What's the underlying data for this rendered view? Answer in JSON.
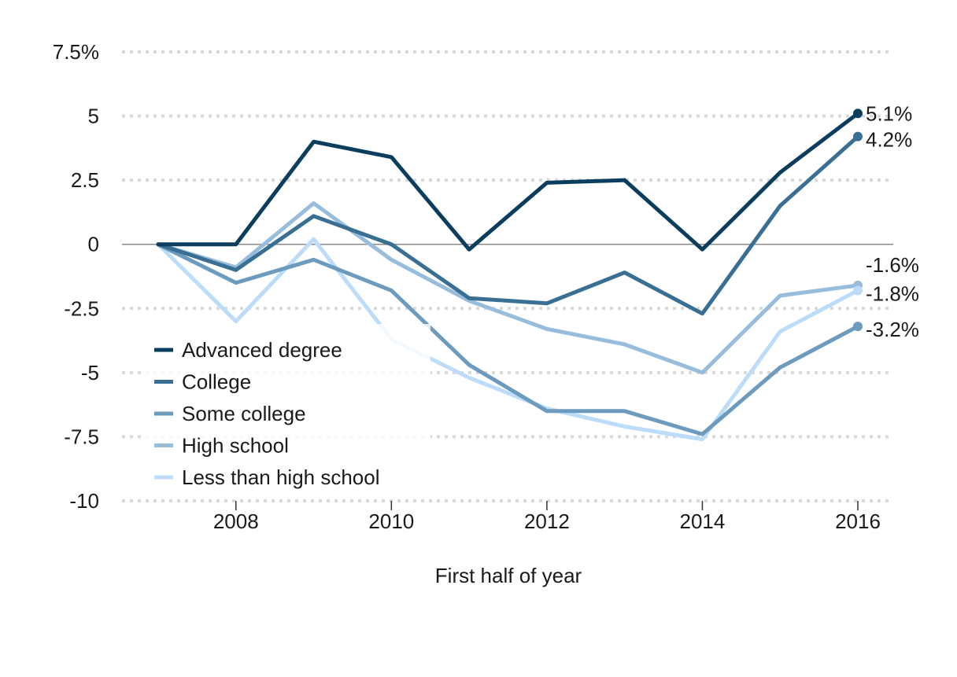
{
  "chart_data": {
    "type": "line",
    "xlabel": "First half of year",
    "ylabel": "",
    "x": [
      2007,
      2008,
      2009,
      2010,
      2011,
      2012,
      2013,
      2014,
      2015,
      2016
    ],
    "xlim": [
      2006.5,
      2016.5
    ],
    "ylim": [
      -10,
      7.5
    ],
    "x_ticks": [
      2008,
      2010,
      2012,
      2014,
      2016
    ],
    "x_tick_labels": [
      "2008",
      "2010",
      "2012",
      "2014",
      "2016"
    ],
    "y_ticks": [
      7.5,
      5,
      2.5,
      0,
      -2.5,
      -5,
      -7.5,
      -10
    ],
    "y_tick_labels": [
      "7.5%",
      "5",
      "2.5",
      "0",
      "-2.5",
      "-5",
      "-7.5",
      "-10"
    ],
    "grid": "horizontal dotted",
    "zero_line": true,
    "legend_position": "bottom-left",
    "series": [
      {
        "name": "Advanced degree",
        "color": "#0b3e5e",
        "values": [
          0,
          0,
          4.0,
          3.4,
          -0.2,
          2.4,
          2.5,
          -0.2,
          2.8,
          5.1
        ],
        "end_label": "5.1%"
      },
      {
        "name": "College",
        "color": "#3a6f94",
        "values": [
          0,
          -1.0,
          1.1,
          0.0,
          -2.1,
          -2.3,
          -1.1,
          -2.7,
          1.5,
          4.2
        ],
        "end_label": "4.2%"
      },
      {
        "name": "Some college",
        "color": "#6c9bbd",
        "values": [
          0,
          -1.5,
          -0.6,
          -1.8,
          -4.7,
          -6.5,
          -6.5,
          -7.4,
          -4.8,
          -3.2
        ],
        "end_label": "-3.2%"
      },
      {
        "name": "High school",
        "color": "#98bcdc",
        "values": [
          0,
          -0.9,
          1.6,
          -0.6,
          -2.2,
          -3.3,
          -3.9,
          -5.0,
          -2.0,
          -1.6
        ],
        "end_label": "-1.6%"
      },
      {
        "name": "Less than high school",
        "color": "#bcdcf9",
        "values": [
          0,
          -3.0,
          0.2,
          -3.7,
          -5.2,
          -6.4,
          -7.1,
          -7.6,
          -3.4,
          -1.8
        ],
        "end_label": "-1.8%"
      }
    ]
  }
}
